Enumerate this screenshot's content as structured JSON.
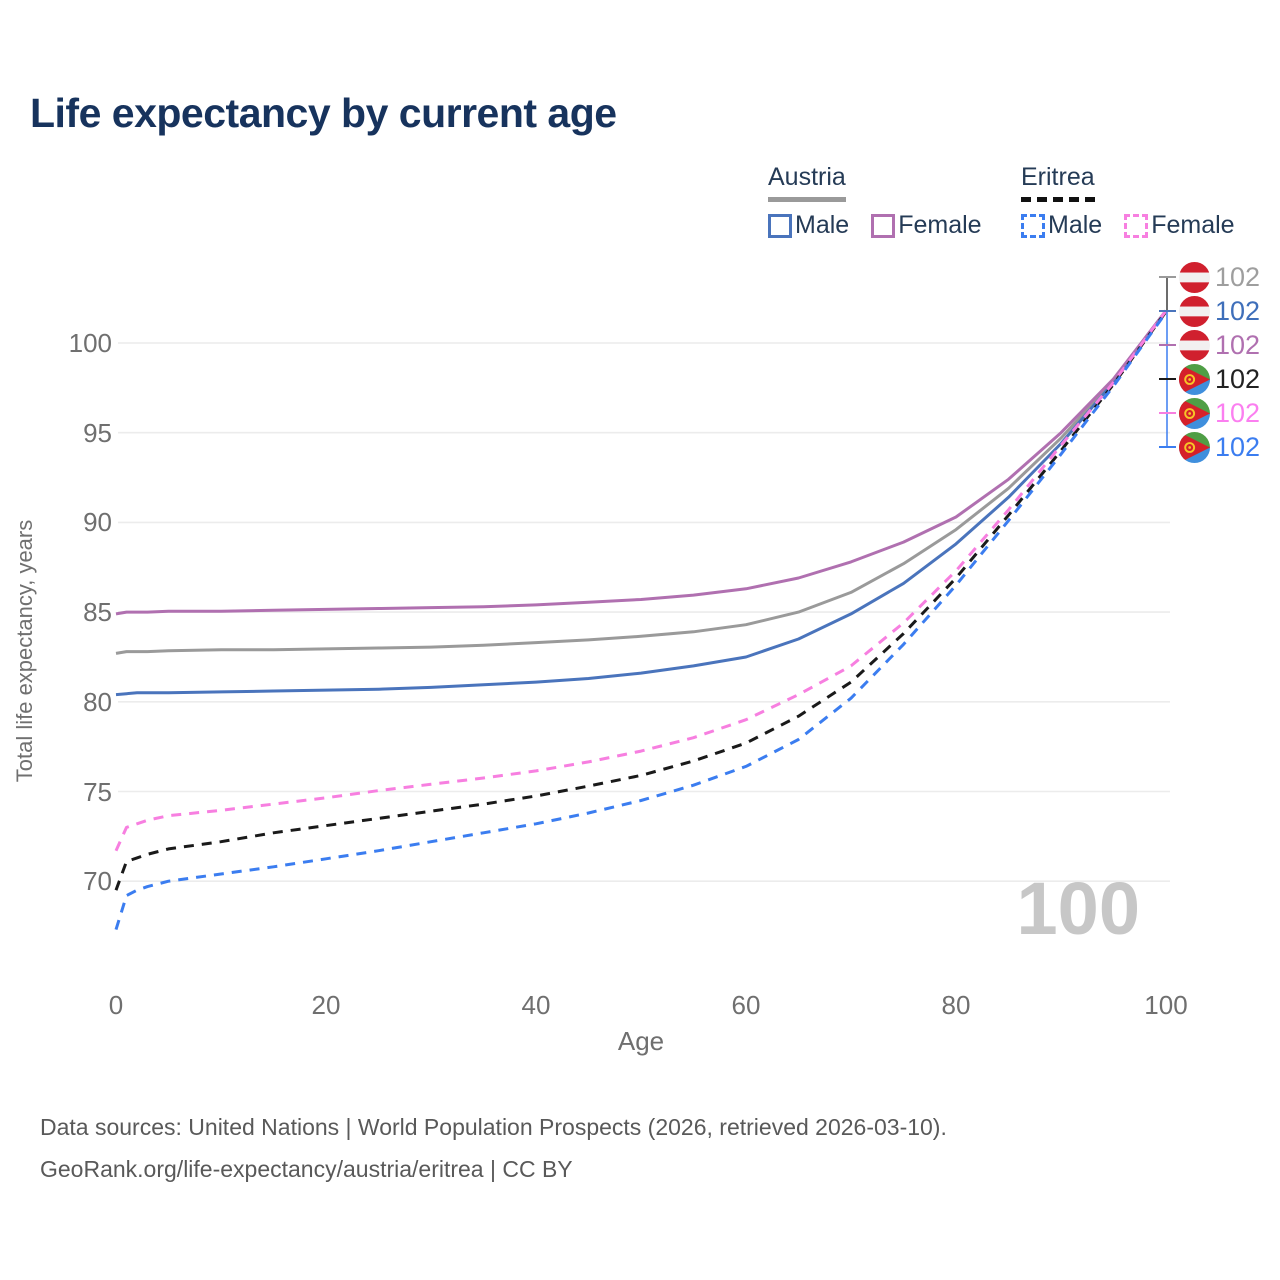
{
  "title": "Life expectancy by current age",
  "watermark": "100",
  "legend": {
    "groups": [
      {
        "name": "Austria",
        "line_style": "solid",
        "underline_color": "#9a9a9a",
        "items": [
          {
            "label": "Male",
            "color": "#4a74bc",
            "dashed": false
          },
          {
            "label": "Female",
            "color": "#b070b0",
            "dashed": false
          }
        ]
      },
      {
        "name": "Eritrea",
        "line_style": "dashed",
        "underline_color": "#111111",
        "items": [
          {
            "label": "Male",
            "color": "#3b7df0",
            "dashed": true
          },
          {
            "label": "Female",
            "color": "#f77fe0",
            "dashed": true
          }
        ]
      }
    ]
  },
  "chart_data": {
    "type": "line",
    "title": "Life expectancy by current age",
    "xlabel": "Age",
    "ylabel": "Total life expectancy, years",
    "xlim": [
      0,
      100
    ],
    "ylim": [
      67,
      102.5
    ],
    "x_ticks": [
      0,
      20,
      40,
      60,
      80,
      100
    ],
    "y_ticks": [
      70,
      75,
      80,
      85,
      90,
      95,
      100
    ],
    "grid": "horizontal",
    "legend_position": "top-right",
    "x": [
      0,
      1,
      2,
      3,
      5,
      10,
      15,
      20,
      25,
      30,
      35,
      40,
      45,
      50,
      55,
      60,
      65,
      70,
      75,
      80,
      85,
      90,
      95,
      100
    ],
    "series": [
      {
        "name": "Austria",
        "country": "austria",
        "sex": "all",
        "color": "#9a9a9a",
        "dash": "solid",
        "end_label": "102",
        "end_label_color": "#9e9e9e",
        "values": [
          82.7,
          82.8,
          82.8,
          82.8,
          82.85,
          82.9,
          82.9,
          82.95,
          83.0,
          83.05,
          83.15,
          83.3,
          83.45,
          83.65,
          83.9,
          84.3,
          85.0,
          86.1,
          87.7,
          89.6,
          91.9,
          94.7,
          97.9,
          101.8
        ]
      },
      {
        "name": "Austria Male",
        "country": "austria",
        "sex": "male",
        "color": "#4a74bc",
        "dash": "solid",
        "end_label": "102",
        "end_label_color": "#3f6fba",
        "values": [
          80.4,
          80.45,
          80.5,
          80.5,
          80.5,
          80.55,
          80.6,
          80.65,
          80.7,
          80.8,
          80.95,
          81.1,
          81.3,
          81.6,
          82.0,
          82.5,
          83.5,
          84.9,
          86.6,
          88.8,
          91.4,
          94.4,
          97.8,
          101.8
        ]
      },
      {
        "name": "Austria Female",
        "country": "austria",
        "sex": "female",
        "color": "#b070b0",
        "dash": "solid",
        "end_label": "102",
        "end_label_color": "#b070b0",
        "values": [
          84.9,
          85.0,
          85.0,
          85.0,
          85.05,
          85.05,
          85.1,
          85.15,
          85.2,
          85.25,
          85.3,
          85.4,
          85.55,
          85.7,
          85.95,
          86.3,
          86.9,
          87.8,
          88.9,
          90.3,
          92.4,
          95.0,
          98.0,
          101.8
        ]
      },
      {
        "name": "Eritrea",
        "country": "eritrea",
        "sex": "all",
        "color": "#1a1a1a",
        "dash": "dashed",
        "end_label": "102",
        "end_label_color": "#222222",
        "values": [
          69.5,
          71.1,
          71.3,
          71.5,
          71.8,
          72.2,
          72.7,
          73.1,
          73.5,
          73.9,
          74.3,
          74.75,
          75.3,
          75.9,
          76.7,
          77.7,
          79.2,
          81.1,
          83.8,
          86.9,
          90.4,
          94.0,
          97.7,
          101.75
        ]
      },
      {
        "name": "Eritrea Female",
        "country": "eritrea",
        "sex": "female",
        "color": "#f77fe0",
        "dash": "dashed",
        "end_label": "102",
        "end_label_color": "#fb7ff0",
        "values": [
          71.7,
          73.0,
          73.2,
          73.4,
          73.65,
          73.95,
          74.3,
          74.65,
          75.05,
          75.4,
          75.75,
          76.15,
          76.65,
          77.25,
          78.0,
          79.0,
          80.4,
          82.0,
          84.4,
          87.3,
          90.7,
          94.3,
          97.8,
          101.8
        ]
      },
      {
        "name": "Eritrea Male",
        "country": "eritrea",
        "sex": "male",
        "color": "#3b7df0",
        "dash": "dashed",
        "end_label": "102",
        "end_label_color": "#3b7df0",
        "values": [
          67.3,
          69.2,
          69.5,
          69.7,
          70.0,
          70.4,
          70.8,
          71.25,
          71.7,
          72.2,
          72.7,
          73.2,
          73.8,
          74.5,
          75.35,
          76.4,
          77.9,
          80.2,
          83.2,
          86.5,
          90.1,
          93.8,
          97.6,
          101.7
        ]
      }
    ]
  },
  "footer": {
    "line1": "Data sources: United Nations | World Population Prospects (2026, retrieved 2026-03-10).",
    "line2": "GeoRank.org/life-expectancy/austria/eritrea | CC BY"
  }
}
